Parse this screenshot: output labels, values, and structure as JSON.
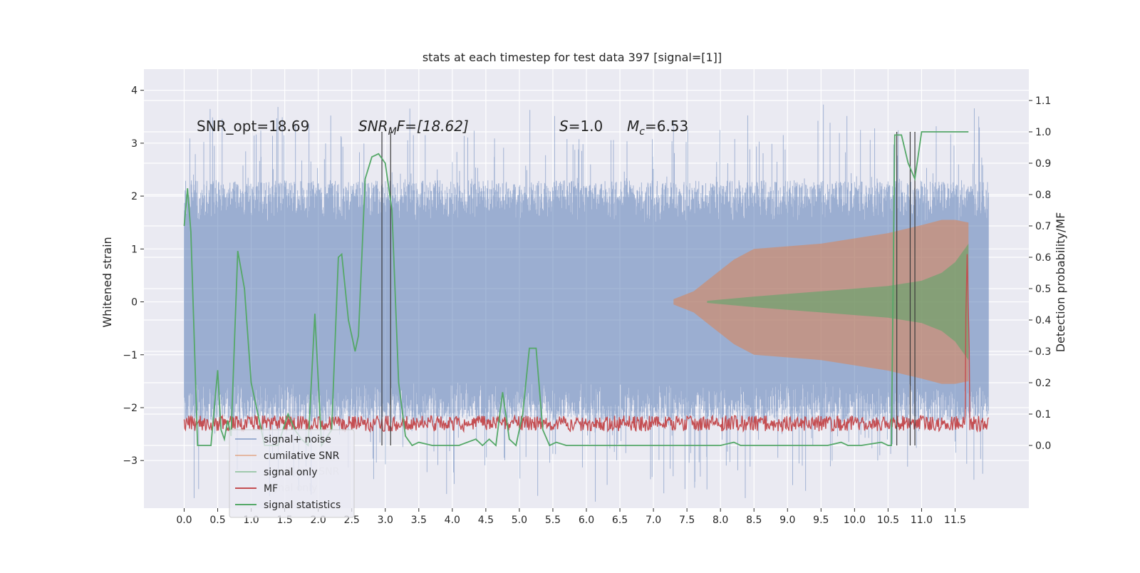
{
  "chart_data": {
    "type": "line",
    "title": "stats at each timestep for test data 397 [signal=[1]]",
    "ylabel_left": "Whitened strain",
    "ylabel_right": "Detection probability/MF",
    "ylim_left": [
      -3.9,
      4.4
    ],
    "ylim_right": [
      -0.2,
      1.2
    ],
    "xlim": [
      -0.6,
      12.6
    ],
    "x_ticks": [
      "0.0",
      "0.5",
      "1.0",
      "1.5",
      "2.0",
      "2.5",
      "3.0",
      "3.5",
      "4.0",
      "4.5",
      "5.0",
      "5.5",
      "6.0",
      "6.5",
      "7.0",
      "7.5",
      "8.0",
      "8.5",
      "9.0",
      "9.5",
      "10.0",
      "10.5",
      "11.0",
      "11.5"
    ],
    "y_left_ticks": [
      "−3",
      "−2",
      "−1",
      "0",
      "1",
      "2",
      "3",
      "4"
    ],
    "y_right_ticks": [
      "0.0",
      "0.1",
      "0.2",
      "0.3",
      "0.4",
      "0.5",
      "0.6",
      "0.7",
      "0.8",
      "0.9",
      "1.0",
      "1.1"
    ],
    "grid": true,
    "annotations": {
      "snr_opt": "SNR_opt=18.69",
      "snr_mf_main": "SNR",
      "snr_mf_sub": "M",
      "snr_mf_rest": "F=[18.62]",
      "s_main": "S",
      "s_rest": "=1.0",
      "mc_main": "M",
      "mc_sub": "c",
      "mc_rest": "=6.53"
    },
    "legend": {
      "position": "lower-left",
      "entries": [
        {
          "label": "signal+ noise",
          "color": "#4c72b0",
          "alpha": 0.5
        },
        {
          "label": "cumilative SNR",
          "color": "#dd8452",
          "alpha": 0.5
        },
        {
          "label": "signal only",
          "color": "#55a868",
          "alpha": 0.5
        },
        {
          "label": "MF",
          "color": "#c44e52",
          "alpha": 1
        },
        {
          "label": "signal statistics",
          "color": "#55a868",
          "alpha": 1
        }
      ],
      "ghost_entries": [
        "cumilative SNR",
        "signal only"
      ]
    },
    "series": [
      {
        "name": "signal statistics",
        "color": "#55a868",
        "x": [
          0.0,
          0.05,
          0.1,
          0.2,
          0.3,
          0.4,
          0.5,
          0.55,
          0.6,
          0.65,
          0.7,
          0.8,
          0.9,
          1.0,
          1.2,
          1.4,
          1.55,
          1.65,
          1.75,
          1.85,
          1.95,
          2.05,
          2.2,
          2.3,
          2.35,
          2.45,
          2.55,
          2.6,
          2.7,
          2.8,
          2.9,
          3.0,
          3.1,
          3.2,
          3.3,
          3.4,
          3.5,
          3.7,
          3.9,
          4.1,
          4.35,
          4.45,
          4.55,
          4.65,
          4.75,
          4.85,
          4.95,
          5.05,
          5.15,
          5.25,
          5.35,
          5.45,
          5.55,
          5.7,
          5.9,
          6.1,
          6.5,
          7.0,
          8.0,
          8.2,
          8.3,
          9.0,
          9.6,
          9.8,
          9.9,
          10.1,
          10.4,
          10.5,
          10.55,
          10.6,
          10.7,
          10.8,
          10.9,
          11.0,
          11.1,
          11.3,
          11.6,
          11.7
        ],
        "values": [
          0.7,
          0.82,
          0.68,
          0.0,
          0.0,
          0.0,
          0.24,
          0.05,
          0.02,
          0.08,
          0.03,
          0.62,
          0.5,
          0.2,
          0.0,
          0.0,
          0.1,
          0.05,
          0.02,
          0.0,
          0.42,
          0.0,
          0.05,
          0.6,
          0.61,
          0.4,
          0.3,
          0.35,
          0.85,
          0.92,
          0.93,
          0.9,
          0.75,
          0.2,
          0.03,
          0.0,
          0.01,
          0.0,
          0.0,
          0.0,
          0.02,
          0.0,
          0.02,
          0.0,
          0.17,
          0.02,
          0.0,
          0.1,
          0.31,
          0.31,
          0.05,
          0.0,
          0.01,
          0.0,
          0.0,
          0.0,
          0.0,
          0.0,
          0.0,
          0.01,
          0.0,
          0.0,
          0.0,
          0.01,
          0.0,
          0.0,
          0.01,
          0.0,
          0.0,
          0.99,
          0.99,
          0.9,
          0.85,
          1.0,
          1.0,
          1.0,
          1.0,
          1.0
        ]
      },
      {
        "name": "MF",
        "color": "#c44e52",
        "baseline": 0.07,
        "peak_x": 11.68,
        "peak_value": 0.61
      },
      {
        "name": "cumilative SNR",
        "color": "#dd8452",
        "envelope_x": [
          7.3,
          7.6,
          7.9,
          8.2,
          8.5,
          9.0,
          9.5,
          10.0,
          10.5,
          11.0,
          11.3,
          11.5,
          11.7
        ],
        "envelope_values": [
          0.05,
          0.2,
          0.5,
          0.8,
          1.0,
          1.05,
          1.1,
          1.2,
          1.3,
          1.45,
          1.55,
          1.55,
          1.5
        ]
      },
      {
        "name": "signal only",
        "color": "#55a868",
        "envelope_x": [
          7.8,
          8.5,
          9.0,
          9.5,
          10.0,
          10.5,
          11.0,
          11.3,
          11.5,
          11.7
        ],
        "envelope_values": [
          0.02,
          0.1,
          0.15,
          0.2,
          0.25,
          0.3,
          0.4,
          0.55,
          0.75,
          1.1
        ]
      }
    ],
    "vertical_markers": [
      2.95,
      3.08,
      10.63,
      10.83,
      10.9
    ],
    "noise_band": {
      "xmin": 0.0,
      "xmax": 12.0,
      "core": 1.5
    }
  }
}
